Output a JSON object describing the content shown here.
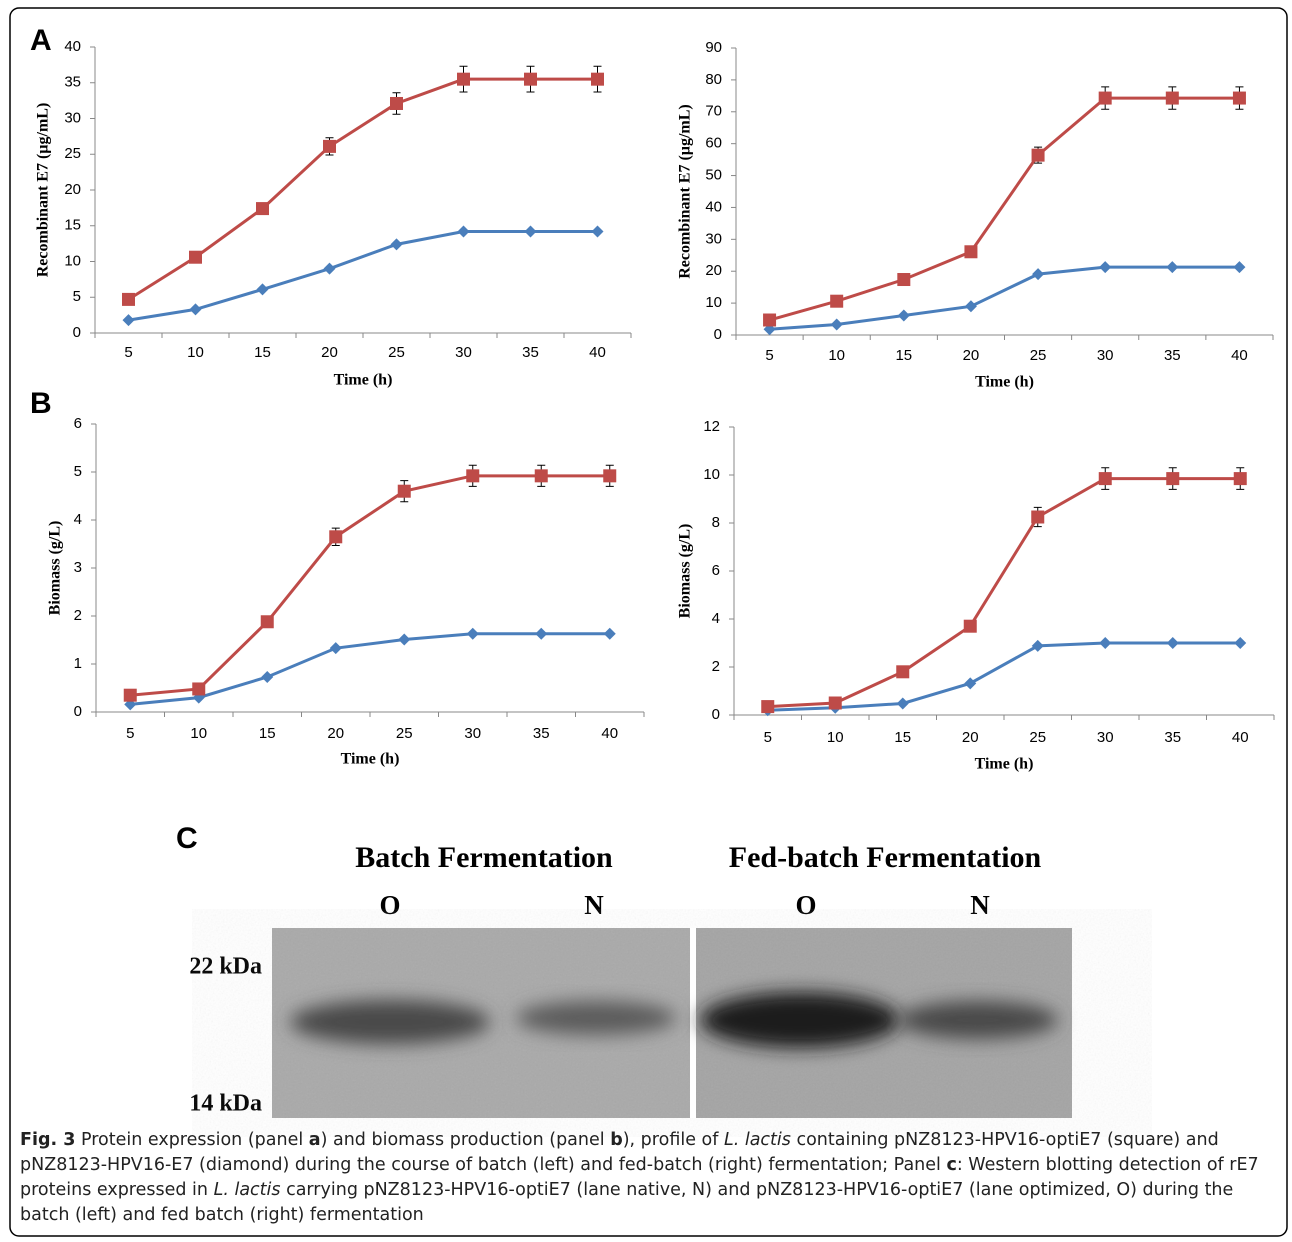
{
  "panel_labels": [
    "A",
    "B"
  ],
  "chart_data": [
    {
      "type": "line",
      "y_label": "Recombinant E7 (µg/mL)",
      "x_label": "Time (h)",
      "categories": [
        5,
        10,
        15,
        20,
        25,
        30,
        35,
        40
      ],
      "ylim": [
        0,
        40
      ],
      "yticks": [
        0,
        5,
        10,
        15,
        20,
        25,
        30,
        35,
        40
      ],
      "series": [
        {
          "color": "#4a7ebb",
          "marker": "diamond",
          "values": [
            1.8,
            3.3,
            6.1,
            9.0,
            12.4,
            14.2,
            14.2,
            14.2
          ]
        },
        {
          "color": "#be4b48",
          "marker": "square",
          "values": [
            4.7,
            10.6,
            17.4,
            26.1,
            32.1,
            35.5,
            35.5,
            35.5
          ],
          "errors": [
            0.5,
            0.5,
            0.5,
            1.2,
            1.5,
            1.8,
            1.8,
            1.8
          ]
        }
      ]
    },
    {
      "type": "line",
      "y_label": "Recombinant E7 (µg/mL)",
      "x_label": "Time (h)",
      "categories": [
        5,
        10,
        15,
        20,
        25,
        30,
        35,
        40
      ],
      "ylim": [
        0,
        90
      ],
      "yticks": [
        0,
        10,
        20,
        30,
        40,
        50,
        60,
        70,
        80,
        90
      ],
      "series": [
        {
          "color": "#4a7ebb",
          "marker": "diamond",
          "values": [
            1.8,
            3.3,
            6.1,
            9.0,
            19.1,
            21.3,
            21.3,
            21.3
          ]
        },
        {
          "color": "#be4b48",
          "marker": "square",
          "values": [
            4.7,
            10.6,
            17.4,
            26.1,
            56.4,
            74.3,
            74.3,
            74.3
          ],
          "errors": [
            0.5,
            0.5,
            0.5,
            1.0,
            2.5,
            3.5,
            3.5,
            3.5
          ]
        }
      ]
    },
    {
      "type": "line",
      "y_label": "Biomass (g/L)",
      "x_label": "Time (h)",
      "categories": [
        5,
        10,
        15,
        20,
        25,
        30,
        35,
        40
      ],
      "ylim": [
        0,
        6
      ],
      "yticks": [
        0,
        1,
        2,
        3,
        4,
        5,
        6
      ],
      "series": [
        {
          "color": "#4a7ebb",
          "marker": "diamond",
          "values": [
            0.16,
            0.3,
            0.73,
            1.33,
            1.51,
            1.63,
            1.63,
            1.63
          ]
        },
        {
          "color": "#be4b48",
          "marker": "square",
          "values": [
            0.35,
            0.48,
            1.88,
            3.65,
            4.6,
            4.92,
            4.92,
            4.92
          ],
          "errors": [
            0.03,
            0.03,
            0.05,
            0.18,
            0.22,
            0.22,
            0.22,
            0.22
          ]
        }
      ]
    },
    {
      "type": "line",
      "y_label": "Biomass (g/L)",
      "x_label": "Time (h)",
      "categories": [
        5,
        10,
        15,
        20,
        25,
        30,
        35,
        40
      ],
      "ylim": [
        0,
        12
      ],
      "yticks": [
        0,
        2,
        4,
        6,
        8,
        10,
        12
      ],
      "series": [
        {
          "color": "#4a7ebb",
          "marker": "diamond",
          "values": [
            0.2,
            0.3,
            0.48,
            1.32,
            2.88,
            3.0,
            3.0,
            3.0
          ]
        },
        {
          "color": "#be4b48",
          "marker": "square",
          "values": [
            0.35,
            0.5,
            1.8,
            3.7,
            8.25,
            9.85,
            9.85,
            9.85
          ],
          "errors": [
            0.05,
            0.05,
            0.1,
            0.15,
            0.4,
            0.45,
            0.45,
            0.45
          ]
        }
      ]
    }
  ],
  "blot": {
    "panel": "C",
    "groups": [
      "Batch Fermentation",
      "Fed-batch Fermentation"
    ],
    "lanes": [
      "O",
      "N",
      "O",
      "N"
    ],
    "markers": [
      "22 kDa",
      "14 kDa"
    ]
  },
  "caption": [
    {
      "text": "Fig. 3",
      "style": "bold"
    },
    {
      "text": " Protein expression (panel ",
      "style": "normal"
    },
    {
      "text": "a",
      "style": "bold"
    },
    {
      "text": ") and biomass production (panel ",
      "style": "normal"
    },
    {
      "text": "b",
      "style": "bold"
    },
    {
      "text": "), profile of ",
      "style": "normal"
    },
    {
      "text": "L. lactis",
      "style": "italic"
    },
    {
      "text": " containing pNZ8123-HPV16-optiE7 (square) and pNZ8123-HPV16-E7 (diamond) during the course of batch (left) and fed-batch (right) fermentation; Panel ",
      "style": "normal"
    },
    {
      "text": "c",
      "style": "bold"
    },
    {
      "text": ": Western blotting detection of rE7 proteins expressed in ",
      "style": "normal"
    },
    {
      "text": "L. lactis",
      "style": "italic"
    },
    {
      "text": " carrying pNZ8123-HPV16-optiE7 (lane native, N) and pNZ8123-HPV16-optiE7 (lane optimized, O) during the batch (left) and fed batch (right) fermentation",
      "style": "normal"
    }
  ]
}
